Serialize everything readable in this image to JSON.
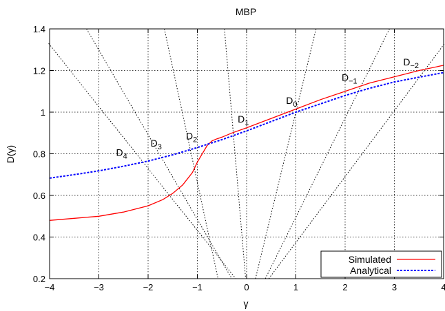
{
  "chart_data": {
    "type": "line",
    "title": "MBP",
    "xlabel": "γ",
    "ylabel": "D(γ)",
    "xlim": [
      -4,
      4
    ],
    "ylim": [
      0.2,
      1.4
    ],
    "xticks": [
      "−4",
      "−3",
      "−2",
      "−1",
      "0",
      "1",
      "2",
      "3",
      "4"
    ],
    "yticks": [
      "0.2",
      "0.4",
      "0.6",
      "0.8",
      "1",
      "1.2",
      "1.4"
    ],
    "grid": true,
    "legend_position": "bottom-right",
    "series": [
      {
        "name": "Simulated",
        "color": "#ff0000",
        "style": "solid",
        "x": [
          -4,
          -3.5,
          -3,
          -2.5,
          -2,
          -1.7,
          -1.5,
          -1.3,
          -1.1,
          -1.0,
          -0.9,
          -0.8,
          -0.7,
          -0.6,
          -0.5,
          -0.3,
          0,
          0.5,
          1,
          1.5,
          2,
          2.5,
          3,
          3.5,
          4
        ],
        "y": [
          0.48,
          0.49,
          0.5,
          0.52,
          0.55,
          0.58,
          0.61,
          0.65,
          0.71,
          0.76,
          0.8,
          0.84,
          0.862,
          0.872,
          0.88,
          0.9,
          0.925,
          0.97,
          1.015,
          1.06,
          1.1,
          1.14,
          1.17,
          1.2,
          1.225
        ]
      },
      {
        "name": "Analytical",
        "color": "#0000ff",
        "style": "dashed",
        "x": [
          -4,
          -3.5,
          -3,
          -2.5,
          -2,
          -1.5,
          -1,
          -0.5,
          0,
          0.5,
          1,
          1.5,
          2,
          2.5,
          3,
          3.5,
          4
        ],
        "y": [
          0.683,
          0.7,
          0.718,
          0.74,
          0.765,
          0.795,
          0.83,
          0.868,
          0.91,
          0.955,
          1.0,
          1.04,
          1.08,
          1.115,
          1.145,
          1.168,
          1.19
        ]
      }
    ],
    "reference_lines": [
      {
        "name": "D4",
        "x": [
          -4.02,
          -0.22
        ],
        "y": [
          1.33,
          0.2
        ]
      },
      {
        "name": "D3",
        "x": [
          -3.25,
          -0.3
        ],
        "y": [
          1.4,
          0.2
        ]
      },
      {
        "name": "D2",
        "x": [
          -1.67,
          -0.58
        ],
        "y": [
          1.4,
          0.2
        ]
      },
      {
        "name": "D1",
        "x": [
          -0.45,
          -0.02
        ],
        "y": [
          1.4,
          0.2
        ]
      },
      {
        "name": "D0",
        "x": [
          0.18,
          1.41
        ],
        "y": [
          0.2,
          1.4
        ]
      },
      {
        "name": "D-1",
        "x": [
          0.38,
          2.9
        ],
        "y": [
          0.2,
          1.4
        ]
      },
      {
        "name": "D-2",
        "x": [
          0.45,
          4.02
        ],
        "y": [
          0.2,
          1.33
        ]
      }
    ],
    "annotations": [
      {
        "base": "D",
        "sub": "4",
        "x": -2.65,
        "y": 0.79
      },
      {
        "base": "D",
        "sub": "3",
        "x": -1.95,
        "y": 0.835
      },
      {
        "base": "D",
        "sub": "2",
        "x": -1.23,
        "y": 0.87
      },
      {
        "base": "D",
        "sub": "1",
        "x": -0.18,
        "y": 0.95
      },
      {
        "base": "D",
        "sub": "0",
        "x": 0.8,
        "y": 1.04
      },
      {
        "base": "D",
        "sub": "−1",
        "x": 1.93,
        "y": 1.15
      },
      {
        "base": "D",
        "sub": "−2",
        "x": 3.18,
        "y": 1.225
      }
    ]
  }
}
